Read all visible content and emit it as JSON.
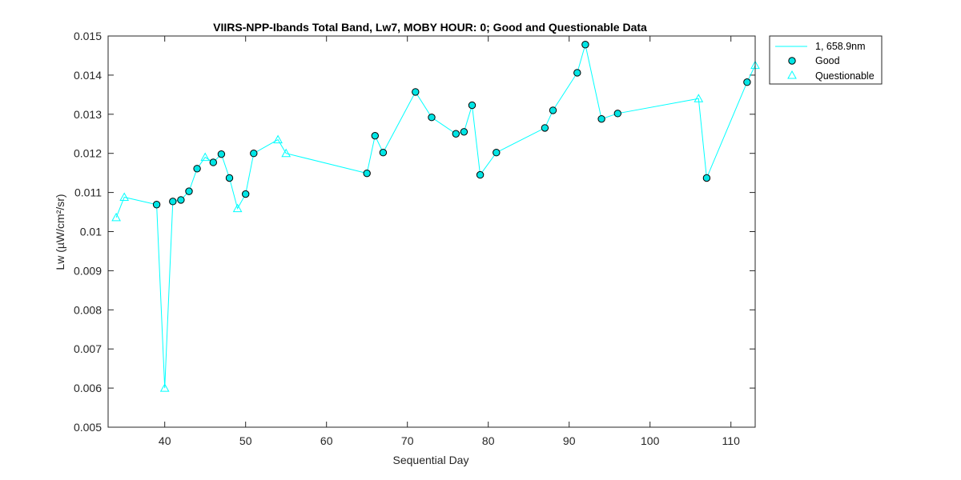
{
  "chart_data": {
    "type": "line",
    "title": "VIIRS-NPP-Ibands Total Band,  Lw7, MOBY HOUR: 0;  Good and Questionable Data",
    "xlabel": "Sequential Day",
    "ylabel": "Lw (µW/cm²/sr)",
    "xlim": [
      33,
      113
    ],
    "ylim": [
      0.005,
      0.015
    ],
    "xticks": [
      40,
      50,
      60,
      70,
      80,
      90,
      100,
      110
    ],
    "yticks": [
      0.005,
      0.006,
      0.007,
      0.008,
      0.009,
      0.01,
      0.011,
      0.012,
      0.013,
      0.014,
      0.015
    ],
    "ytick_labels": [
      "0.005",
      "0.006",
      "0.007",
      "0.008",
      "0.009",
      "0.01",
      "0.011",
      "0.012",
      "0.013",
      "0.014",
      "0.015"
    ],
    "grid": false,
    "color": "#00ffff",
    "legend": {
      "placement": "outside-top-right",
      "entries": [
        "1, 658.9nm",
        "Good",
        "Questionable"
      ]
    },
    "series": [
      {
        "name": "1, 658.9nm",
        "x": [
          34,
          35,
          39,
          40,
          41,
          42,
          43,
          44,
          45,
          46,
          47,
          48,
          49,
          50,
          51,
          54,
          55,
          65,
          66,
          67,
          71,
          73,
          76,
          77,
          78,
          79,
          81,
          87,
          88,
          91,
          92,
          94,
          96,
          106,
          107,
          112,
          113
        ],
        "y": [
          0.01036,
          0.01088,
          0.01069,
          0.006,
          0.01077,
          0.01081,
          0.01103,
          0.01161,
          0.0119,
          0.01177,
          0.01198,
          0.01137,
          0.01059,
          0.01096,
          0.012,
          0.01235,
          0.012,
          0.01149,
          0.01245,
          0.01202,
          0.01357,
          0.01292,
          0.0125,
          0.01255,
          0.01323,
          0.01145,
          0.01202,
          0.01265,
          0.0131,
          0.01406,
          0.01478,
          0.01288,
          0.01302,
          0.0134,
          0.01137,
          0.01382,
          0.01425
        ],
        "quality": [
          "Q",
          "Q",
          "G",
          "Q",
          "G",
          "G",
          "G",
          "G",
          "Q",
          "G",
          "G",
          "G",
          "Q",
          "G",
          "G",
          "Q",
          "Q",
          "G",
          "G",
          "G",
          "G",
          "G",
          "G",
          "G",
          "G",
          "G",
          "G",
          "G",
          "G",
          "G",
          "G",
          "G",
          "G",
          "Q",
          "G",
          "G",
          "Q"
        ]
      }
    ]
  }
}
